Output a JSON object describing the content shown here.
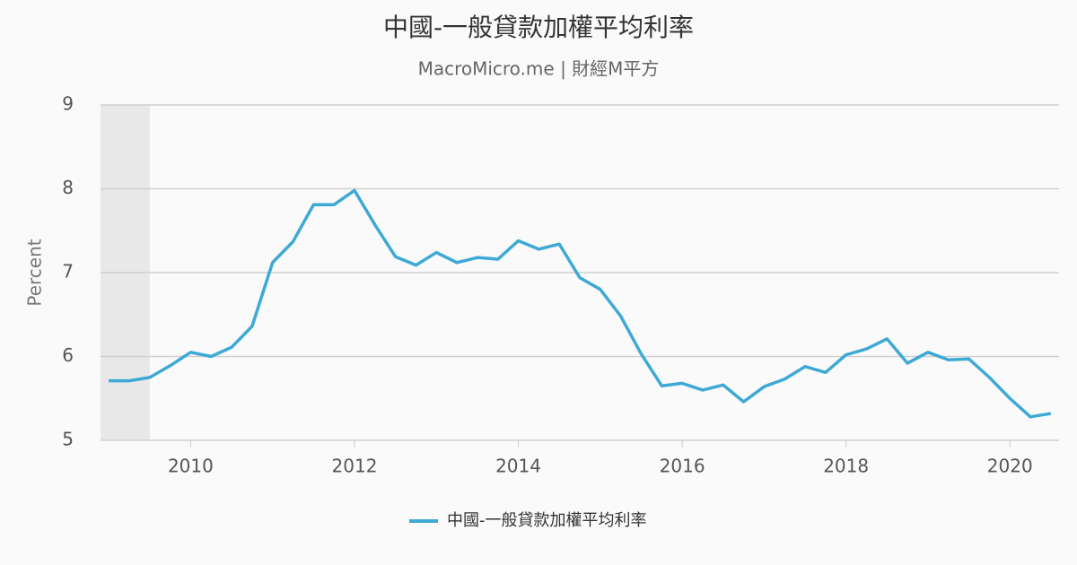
{
  "chart_data": {
    "type": "line",
    "title": "中國-一般貸款加權平均利率",
    "subtitle": "MacroMicro.me | 財經M平方",
    "y_label": "Percent",
    "x": [
      2009,
      2009.25,
      2009.5,
      2009.75,
      2010,
      2010.25,
      2010.5,
      2010.75,
      2011,
      2011.25,
      2011.5,
      2011.75,
      2012,
      2012.25,
      2012.5,
      2012.75,
      2013,
      2013.25,
      2013.5,
      2013.75,
      2014,
      2014.25,
      2014.5,
      2014.75,
      2015,
      2015.25,
      2015.5,
      2015.75,
      2016,
      2016.25,
      2016.5,
      2016.75,
      2017,
      2017.25,
      2017.5,
      2017.75,
      2018,
      2018.25,
      2018.5,
      2018.75,
      2019,
      2019.25,
      2019.5,
      2019.75,
      2020,
      2020.25,
      2020.5
    ],
    "series": [
      {
        "name": "中國-一般貸款加權平均利率",
        "color": "#3fa9d6",
        "values": [
          5.71,
          5.71,
          5.75,
          5.89,
          6.05,
          6.0,
          6.11,
          6.36,
          7.12,
          7.37,
          7.81,
          7.81,
          7.98,
          7.57,
          7.19,
          7.09,
          7.24,
          7.12,
          7.18,
          7.16,
          7.38,
          7.28,
          7.34,
          6.94,
          6.8,
          6.48,
          6.03,
          5.65,
          5.68,
          5.6,
          5.66,
          5.46,
          5.64,
          5.73,
          5.88,
          5.81,
          6.02,
          6.09,
          6.21,
          5.92,
          6.05,
          5.96,
          5.97,
          5.75,
          5.5,
          5.28,
          5.32
        ]
      }
    ],
    "shaded_range": [
      2008.9,
      2009.5
    ],
    "xlim": [
      2008.9,
      2020.6
    ],
    "xticks": [
      2010,
      2012,
      2014,
      2016,
      2018,
      2020
    ],
    "ylim": [
      5,
      9
    ],
    "yticks": [
      5,
      6,
      7,
      8,
      9
    ],
    "grid": true
  }
}
